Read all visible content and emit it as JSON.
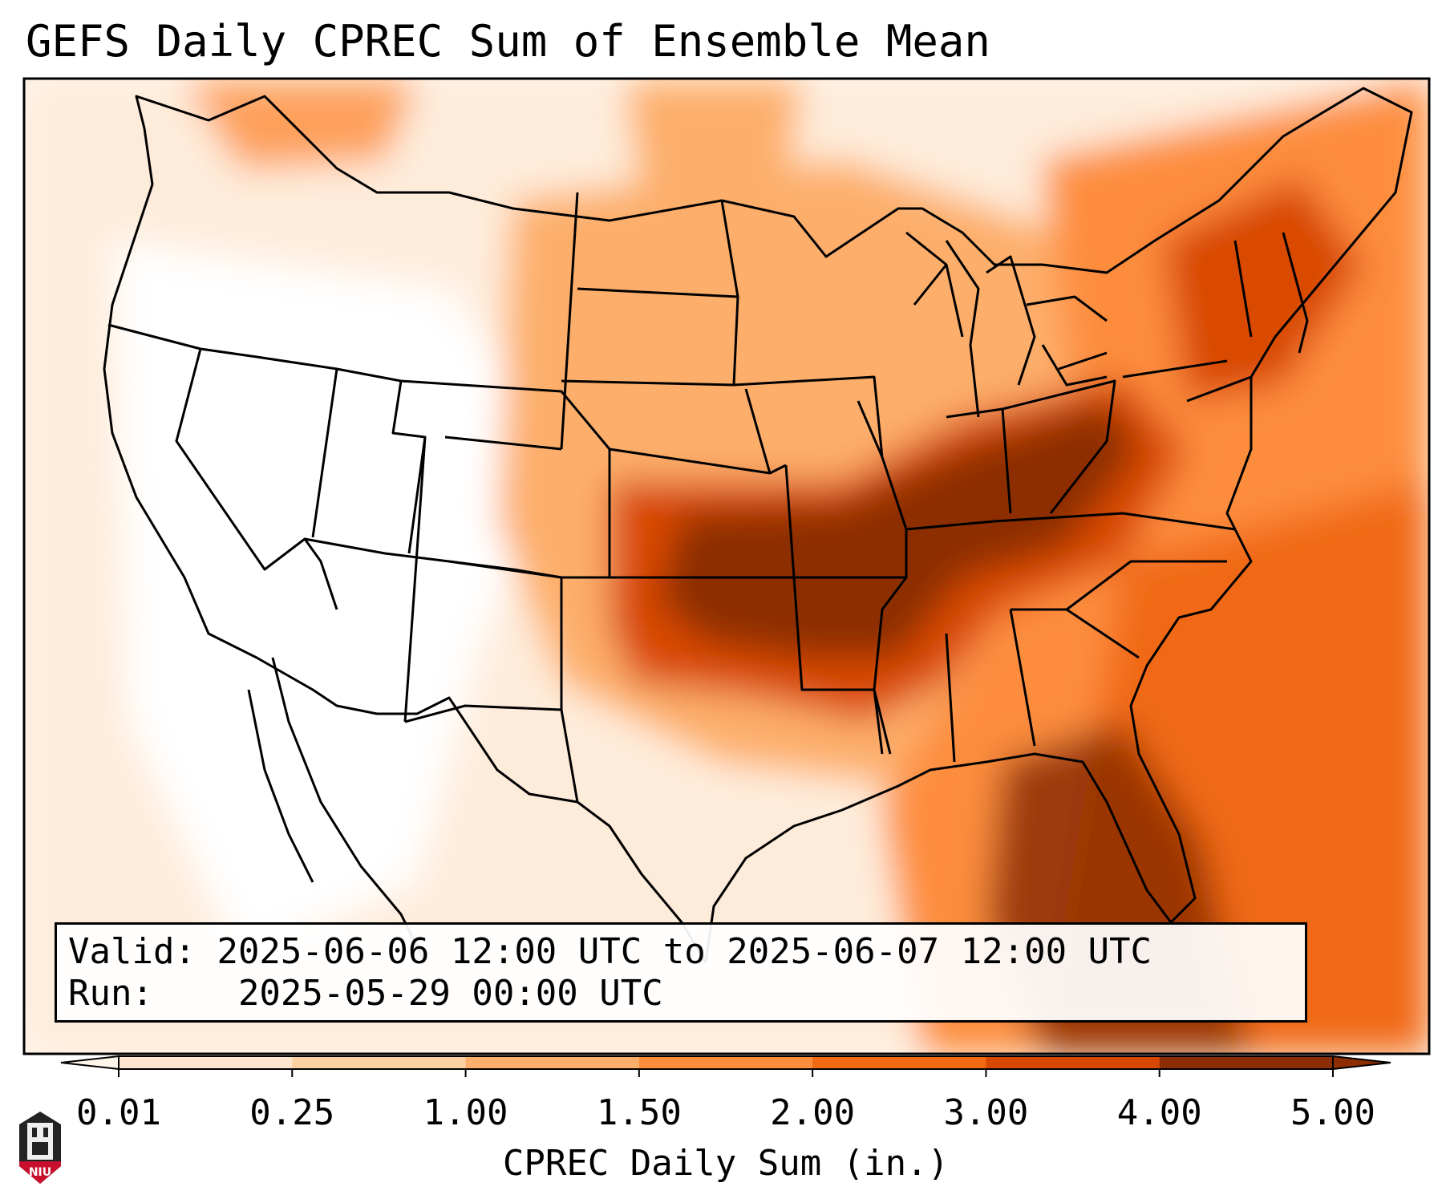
{
  "title": "GEFS Daily CPREC Sum of Ensemble Mean",
  "info": {
    "valid_label": "Valid:",
    "valid_value": "2025-06-06 12:00 UTC to 2025-06-07 12:00 UTC",
    "run_label": "Run:",
    "run_value": "2025-05-29 00:00 UTC"
  },
  "colorbar": {
    "label": "CPREC Daily Sum (in.)",
    "ticks": [
      "0.01",
      "0.25",
      "1.00",
      "1.50",
      "2.00",
      "3.00",
      "4.00",
      "5.00"
    ],
    "colors": [
      "#fff5eb",
      "#fee6ce",
      "#fdd0a2",
      "#fdae6b",
      "#fd8d3c",
      "#f16913",
      "#d94801",
      "#8c2d04"
    ],
    "extend": "both"
  },
  "logo": {
    "text": "NIU",
    "colors": {
      "shield": "#c8102e",
      "tower": "#222222"
    }
  }
}
